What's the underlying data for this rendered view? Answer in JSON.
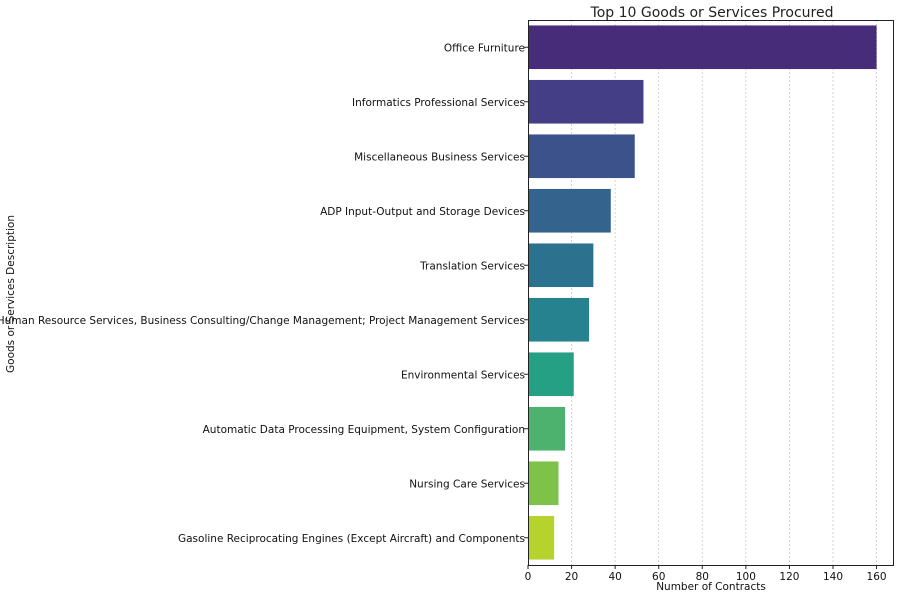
{
  "chart_data": {
    "type": "bar",
    "orientation": "horizontal",
    "title": "Top 10 Goods or Services Procured",
    "xlabel": "Number of Contracts",
    "ylabel": "Goods or Services Description",
    "xlim": [
      0,
      168
    ],
    "xticks": [
      0,
      20,
      40,
      60,
      80,
      100,
      120,
      140,
      160
    ],
    "grid": "vertical dashed",
    "categories": [
      "Office Furniture",
      "Informatics Professional Services",
      "Miscellaneous Business Services",
      "ADP Input-Output and Storage Devices",
      "Translation Services",
      "Human Resource Services, Business Consulting/Change Management; Project Management Services",
      "Environmental Services",
      "Automatic Data Processing Equipment, System Configuration",
      "Nursing Care Services",
      "Gasoline Reciprocating Engines (Except Aircraft) and Components"
    ],
    "values": [
      160,
      53,
      49,
      38,
      30,
      28,
      21,
      17,
      14,
      12
    ],
    "colors": [
      "#472c7a",
      "#433e85",
      "#3b528b",
      "#34648e",
      "#2c728e",
      "#26828e",
      "#26a084",
      "#4cb26d",
      "#7ec24a",
      "#b6d22d"
    ]
  }
}
